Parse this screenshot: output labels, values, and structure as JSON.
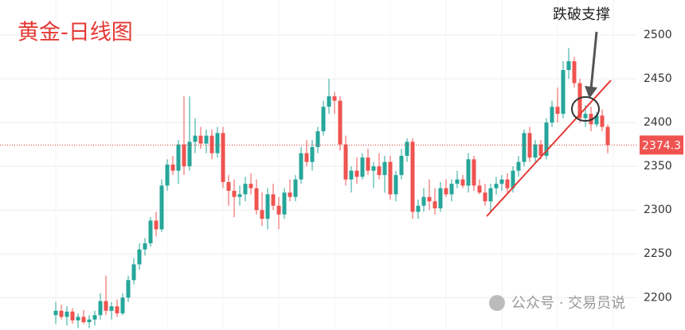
{
  "chart_data": {
    "type": "candlestick",
    "title": "黄金-日线图",
    "annotation": "跌破支撑",
    "watermark": "公众号 · 交易员说",
    "current_price": 2374.3,
    "up_color": "#26a69a",
    "down_color": "#ef5350",
    "grid": true,
    "ylim": [
      2163,
      2540
    ],
    "yticks": [
      2200,
      2250,
      2300,
      2350,
      2400,
      2450,
      2500
    ],
    "ohlc": [
      [
        2180,
        2195,
        2170,
        2185
      ],
      [
        2185,
        2192,
        2175,
        2178
      ],
      [
        2178,
        2190,
        2168,
        2184
      ],
      [
        2184,
        2188,
        2170,
        2174
      ],
      [
        2174,
        2182,
        2165,
        2178
      ],
      [
        2178,
        2186,
        2170,
        2172
      ],
      [
        2172,
        2180,
        2165,
        2175
      ],
      [
        2175,
        2185,
        2168,
        2180
      ],
      [
        2180,
        2205,
        2175,
        2196
      ],
      [
        2196,
        2225,
        2180,
        2185
      ],
      [
        2185,
        2195,
        2175,
        2190
      ],
      [
        2190,
        2198,
        2178,
        2182
      ],
      [
        2182,
        2205,
        2180,
        2200
      ],
      [
        2200,
        2225,
        2195,
        2220
      ],
      [
        2220,
        2245,
        2215,
        2238
      ],
      [
        2238,
        2262,
        2232,
        2255
      ],
      [
        2255,
        2268,
        2248,
        2262
      ],
      [
        2262,
        2292,
        2258,
        2288
      ],
      [
        2288,
        2298,
        2270,
        2278
      ],
      [
        2278,
        2335,
        2275,
        2328
      ],
      [
        2328,
        2358,
        2322,
        2352
      ],
      [
        2352,
        2362,
        2340,
        2345
      ],
      [
        2345,
        2380,
        2330,
        2375
      ],
      [
        2375,
        2430,
        2340,
        2350
      ],
      [
        2350,
        2430,
        2345,
        2378
      ],
      [
        2378,
        2405,
        2365,
        2385
      ],
      [
        2385,
        2395,
        2370,
        2376
      ],
      [
        2376,
        2392,
        2365,
        2385
      ],
      [
        2385,
        2392,
        2358,
        2365
      ],
      [
        2365,
        2395,
        2360,
        2388
      ],
      [
        2388,
        2395,
        2325,
        2332
      ],
      [
        2332,
        2340,
        2305,
        2322
      ],
      [
        2322,
        2335,
        2292,
        2315
      ],
      [
        2315,
        2328,
        2305,
        2318
      ],
      [
        2318,
        2338,
        2310,
        2330
      ],
      [
        2330,
        2342,
        2318,
        2325
      ],
      [
        2325,
        2335,
        2295,
        2300
      ],
      [
        2300,
        2320,
        2282,
        2290
      ],
      [
        2290,
        2325,
        2278,
        2318
      ],
      [
        2318,
        2330,
        2300,
        2305
      ],
      [
        2305,
        2315,
        2278,
        2295
      ],
      [
        2295,
        2325,
        2290,
        2320
      ],
      [
        2320,
        2335,
        2310,
        2315
      ],
      [
        2315,
        2340,
        2310,
        2335
      ],
      [
        2335,
        2372,
        2330,
        2365
      ],
      [
        2365,
        2380,
        2350,
        2355
      ],
      [
        2355,
        2380,
        2345,
        2372
      ],
      [
        2372,
        2395,
        2365,
        2390
      ],
      [
        2390,
        2425,
        2385,
        2418
      ],
      [
        2418,
        2450,
        2410,
        2430
      ],
      [
        2430,
        2435,
        2410,
        2425
      ],
      [
        2425,
        2430,
        2368,
        2375
      ],
      [
        2375,
        2385,
        2328,
        2335
      ],
      [
        2335,
        2350,
        2320,
        2345
      ],
      [
        2345,
        2360,
        2330,
        2338
      ],
      [
        2338,
        2365,
        2335,
        2360
      ],
      [
        2360,
        2370,
        2340,
        2345
      ],
      [
        2345,
        2355,
        2325,
        2350
      ],
      [
        2350,
        2365,
        2335,
        2340
      ],
      [
        2340,
        2362,
        2320,
        2355
      ],
      [
        2355,
        2362,
        2312,
        2318
      ],
      [
        2318,
        2345,
        2310,
        2340
      ],
      [
        2340,
        2370,
        2335,
        2362
      ],
      [
        2362,
        2382,
        2355,
        2378
      ],
      [
        2378,
        2382,
        2290,
        2298
      ],
      [
        2298,
        2312,
        2290,
        2305
      ],
      [
        2305,
        2325,
        2298,
        2315
      ],
      [
        2315,
        2335,
        2300,
        2310
      ],
      [
        2310,
        2325,
        2295,
        2302
      ],
      [
        2302,
        2332,
        2298,
        2325
      ],
      [
        2325,
        2335,
        2315,
        2318
      ],
      [
        2318,
        2335,
        2310,
        2330
      ],
      [
        2330,
        2345,
        2325,
        2335
      ],
      [
        2335,
        2340,
        2325,
        2328
      ],
      [
        2328,
        2365,
        2320,
        2358
      ],
      [
        2358,
        2362,
        2322,
        2328
      ],
      [
        2328,
        2335,
        2318,
        2320
      ],
      [
        2320,
        2330,
        2305,
        2310
      ],
      [
        2310,
        2330,
        2298,
        2325
      ],
      [
        2325,
        2338,
        2318,
        2330
      ],
      [
        2330,
        2340,
        2322,
        2335
      ],
      [
        2335,
        2342,
        2320,
        2325
      ],
      [
        2325,
        2350,
        2320,
        2345
      ],
      [
        2345,
        2362,
        2338,
        2355
      ],
      [
        2355,
        2392,
        2350,
        2388
      ],
      [
        2388,
        2395,
        2355,
        2360
      ],
      [
        2360,
        2380,
        2355,
        2375
      ],
      [
        2375,
        2380,
        2358,
        2362
      ],
      [
        2362,
        2405,
        2358,
        2400
      ],
      [
        2400,
        2425,
        2395,
        2418
      ],
      [
        2418,
        2440,
        2400,
        2410
      ],
      [
        2410,
        2470,
        2405,
        2460
      ],
      [
        2460,
        2485,
        2450,
        2470
      ],
      [
        2470,
        2475,
        2440,
        2445
      ],
      [
        2445,
        2450,
        2400,
        2405
      ],
      [
        2405,
        2420,
        2395,
        2410
      ],
      [
        2410,
        2418,
        2390,
        2398
      ],
      [
        2398,
        2412,
        2395,
        2408
      ],
      [
        2408,
        2415,
        2390,
        2395
      ],
      [
        2395,
        2398,
        2365,
        2374.3
      ]
    ]
  }
}
